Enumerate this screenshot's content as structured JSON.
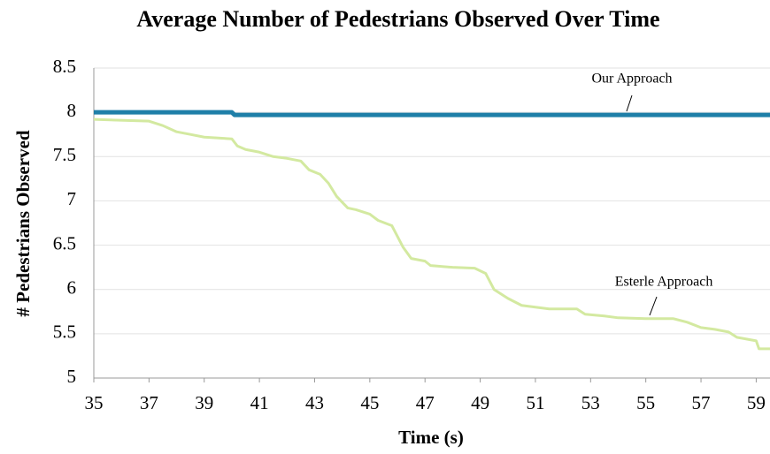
{
  "chart_data": {
    "type": "line",
    "title": "Average Number of Pedestrians Observed Over Time",
    "x_label": "Time (s)",
    "y_label": "# Pedestrians Observed",
    "xlim": [
      35,
      59.5
    ],
    "xticks": [
      35,
      37,
      39,
      41,
      43,
      45,
      47,
      49,
      51,
      53,
      55,
      57,
      59
    ],
    "ylim": [
      5,
      8.5
    ],
    "yticks": [
      5,
      5.5,
      6,
      6.5,
      7,
      7.5,
      8,
      8.5
    ],
    "grid": true,
    "series": [
      {
        "name": "Our Approach",
        "color": "#1f7fa8",
        "x": [
          35,
          40,
          40.1,
          59.5
        ],
        "values": [
          8.0,
          8.0,
          7.97,
          7.97
        ]
      },
      {
        "name": "Esterle Approach",
        "color": "#d3e9a0",
        "x": [
          35,
          37,
          37.5,
          38,
          38.5,
          39,
          40,
          40.2,
          40.5,
          41,
          41.5,
          42,
          42.5,
          42.8,
          43.2,
          43.5,
          43.8,
          44.2,
          44.5,
          45,
          45.3,
          45.8,
          46,
          46.2,
          46.5,
          47,
          47.2,
          48,
          48.8,
          49.2,
          49.5,
          50,
          50.5,
          51,
          51.5,
          52.5,
          52.8,
          53.5,
          54,
          55,
          56,
          56.5,
          57,
          57.5,
          58,
          58.3,
          59,
          59.1,
          59.5
        ],
        "values": [
          7.92,
          7.9,
          7.85,
          7.78,
          7.75,
          7.72,
          7.7,
          7.62,
          7.58,
          7.55,
          7.5,
          7.48,
          7.45,
          7.35,
          7.3,
          7.2,
          7.05,
          6.92,
          6.9,
          6.85,
          6.78,
          6.72,
          6.6,
          6.48,
          6.35,
          6.32,
          6.27,
          6.25,
          6.24,
          6.18,
          6.0,
          5.9,
          5.82,
          5.8,
          5.78,
          5.78,
          5.72,
          5.7,
          5.68,
          5.67,
          5.67,
          5.63,
          5.57,
          5.55,
          5.52,
          5.46,
          5.42,
          5.33,
          5.33
        ]
      }
    ]
  }
}
